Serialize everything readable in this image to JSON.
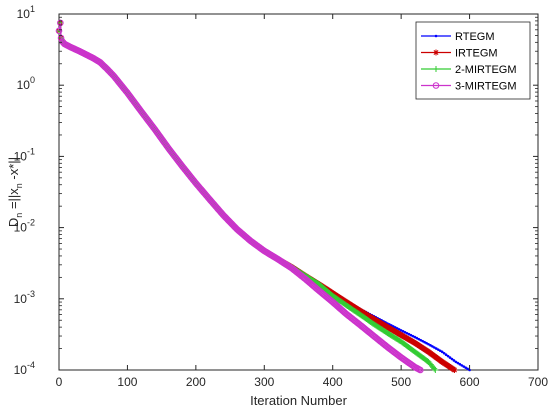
{
  "chart_data": {
    "type": "line",
    "title": "",
    "xlabel": "Iteration Number",
    "ylabel": "D_n =||x_n -x*||",
    "ylabel_parts": {
      "a": "D",
      "a_sub": "n",
      "b": " =||x",
      "b_sub": "n",
      "c": " -x*||"
    },
    "xlim": [
      0,
      700
    ],
    "ylim": [
      0.0001,
      10
    ],
    "yscale": "log",
    "xticks": [
      0,
      100,
      200,
      300,
      400,
      500,
      600,
      700
    ],
    "yticks": [
      {
        "value": 10,
        "base": "10",
        "exp": "1"
      },
      {
        "value": 1,
        "base": "10",
        "exp": "0"
      },
      {
        "value": 0.1,
        "base": "10",
        "exp": "-1"
      },
      {
        "value": 0.01,
        "base": "10",
        "exp": "-2"
      },
      {
        "value": 0.001,
        "base": "10",
        "exp": "-3"
      },
      {
        "value": 0.0001,
        "base": "10",
        "exp": "-4"
      }
    ],
    "grid": false,
    "legend_position": "top-right",
    "series": [
      {
        "name": "RTEGM",
        "color": "#0000ff",
        "marker": "dot",
        "points": [
          [
            0,
            5.8
          ],
          [
            2,
            7.5
          ],
          [
            3,
            4.6
          ],
          [
            5,
            4.1
          ],
          [
            8,
            3.8
          ],
          [
            15,
            3.5
          ],
          [
            30,
            3.0
          ],
          [
            50,
            2.4
          ],
          [
            60,
            2.1
          ],
          [
            70,
            1.7
          ],
          [
            80,
            1.35
          ],
          [
            100,
            0.78
          ],
          [
            120,
            0.43
          ],
          [
            140,
            0.24
          ],
          [
            160,
            0.13
          ],
          [
            180,
            0.073
          ],
          [
            200,
            0.042
          ],
          [
            220,
            0.025
          ],
          [
            240,
            0.015
          ],
          [
            260,
            0.0095
          ],
          [
            280,
            0.0065
          ],
          [
            300,
            0.0047
          ],
          [
            320,
            0.0036
          ],
          [
            340,
            0.0028
          ],
          [
            360,
            0.0021
          ],
          [
            380,
            0.0016
          ],
          [
            400,
            0.0012
          ],
          [
            420,
            0.00092
          ],
          [
            440,
            0.00072
          ],
          [
            460,
            0.00057
          ],
          [
            480,
            0.00045
          ],
          [
            500,
            0.00036
          ],
          [
            520,
            0.00029
          ],
          [
            540,
            0.00023
          ],
          [
            560,
            0.00018
          ],
          [
            580,
            0.00013
          ],
          [
            600,
            0.0001
          ]
        ]
      },
      {
        "name": "IRTEGM",
        "color": "#cc0000",
        "marker": "asterisk",
        "points": [
          [
            0,
            5.8
          ],
          [
            2,
            7.5
          ],
          [
            3,
            4.6
          ],
          [
            5,
            4.1
          ],
          [
            8,
            3.8
          ],
          [
            15,
            3.5
          ],
          [
            30,
            3.0
          ],
          [
            50,
            2.4
          ],
          [
            60,
            2.1
          ],
          [
            70,
            1.7
          ],
          [
            80,
            1.35
          ],
          [
            100,
            0.78
          ],
          [
            120,
            0.43
          ],
          [
            140,
            0.24
          ],
          [
            160,
            0.13
          ],
          [
            180,
            0.073
          ],
          [
            200,
            0.042
          ],
          [
            220,
            0.025
          ],
          [
            240,
            0.015
          ],
          [
            260,
            0.0095
          ],
          [
            280,
            0.0065
          ],
          [
            300,
            0.0047
          ],
          [
            320,
            0.0036
          ],
          [
            340,
            0.0028
          ],
          [
            360,
            0.0021
          ],
          [
            380,
            0.0016
          ],
          [
            400,
            0.0012
          ],
          [
            420,
            0.0009
          ],
          [
            440,
            0.00068
          ],
          [
            460,
            0.00052
          ],
          [
            480,
            0.0004
          ],
          [
            500,
            0.00031
          ],
          [
            520,
            0.00024
          ],
          [
            540,
            0.00018
          ],
          [
            560,
            0.00013
          ],
          [
            578,
            0.0001
          ]
        ]
      },
      {
        "name": "2-MIRTEGM",
        "color": "#33cc33",
        "marker": "plus",
        "points": [
          [
            0,
            5.8
          ],
          [
            2,
            7.5
          ],
          [
            3,
            4.6
          ],
          [
            5,
            4.1
          ],
          [
            8,
            3.8
          ],
          [
            15,
            3.5
          ],
          [
            30,
            3.0
          ],
          [
            50,
            2.4
          ],
          [
            60,
            2.1
          ],
          [
            70,
            1.7
          ],
          [
            80,
            1.35
          ],
          [
            100,
            0.78
          ],
          [
            120,
            0.43
          ],
          [
            140,
            0.24
          ],
          [
            160,
            0.13
          ],
          [
            180,
            0.073
          ],
          [
            200,
            0.042
          ],
          [
            220,
            0.025
          ],
          [
            240,
            0.015
          ],
          [
            260,
            0.0095
          ],
          [
            280,
            0.0065
          ],
          [
            300,
            0.0047
          ],
          [
            320,
            0.0036
          ],
          [
            340,
            0.0028
          ],
          [
            360,
            0.0021
          ],
          [
            380,
            0.0016
          ],
          [
            400,
            0.0011
          ],
          [
            420,
            0.00081
          ],
          [
            440,
            0.0006
          ],
          [
            460,
            0.00044
          ],
          [
            480,
            0.00033
          ],
          [
            500,
            0.00025
          ],
          [
            520,
            0.00018
          ],
          [
            540,
            0.00013
          ],
          [
            550,
            0.0001
          ]
        ]
      },
      {
        "name": "3-MIRTEGM",
        "color": "#cc33cc",
        "marker": "circle",
        "points": [
          [
            0,
            5.8
          ],
          [
            2,
            7.5
          ],
          [
            3,
            4.6
          ],
          [
            5,
            4.1
          ],
          [
            8,
            3.8
          ],
          [
            15,
            3.5
          ],
          [
            30,
            3.0
          ],
          [
            50,
            2.4
          ],
          [
            60,
            2.1
          ],
          [
            70,
            1.7
          ],
          [
            80,
            1.35
          ],
          [
            100,
            0.78
          ],
          [
            120,
            0.43
          ],
          [
            140,
            0.24
          ],
          [
            160,
            0.13
          ],
          [
            180,
            0.073
          ],
          [
            200,
            0.042
          ],
          [
            220,
            0.025
          ],
          [
            240,
            0.015
          ],
          [
            260,
            0.0095
          ],
          [
            280,
            0.0065
          ],
          [
            300,
            0.0047
          ],
          [
            320,
            0.0036
          ],
          [
            340,
            0.0027
          ],
          [
            360,
            0.0019
          ],
          [
            380,
            0.0013
          ],
          [
            400,
            0.0009
          ],
          [
            420,
            0.00061
          ],
          [
            440,
            0.00043
          ],
          [
            460,
            0.0003
          ],
          [
            480,
            0.00021
          ],
          [
            500,
            0.00015
          ],
          [
            520,
            0.00011
          ],
          [
            528,
            0.0001
          ]
        ]
      }
    ]
  }
}
